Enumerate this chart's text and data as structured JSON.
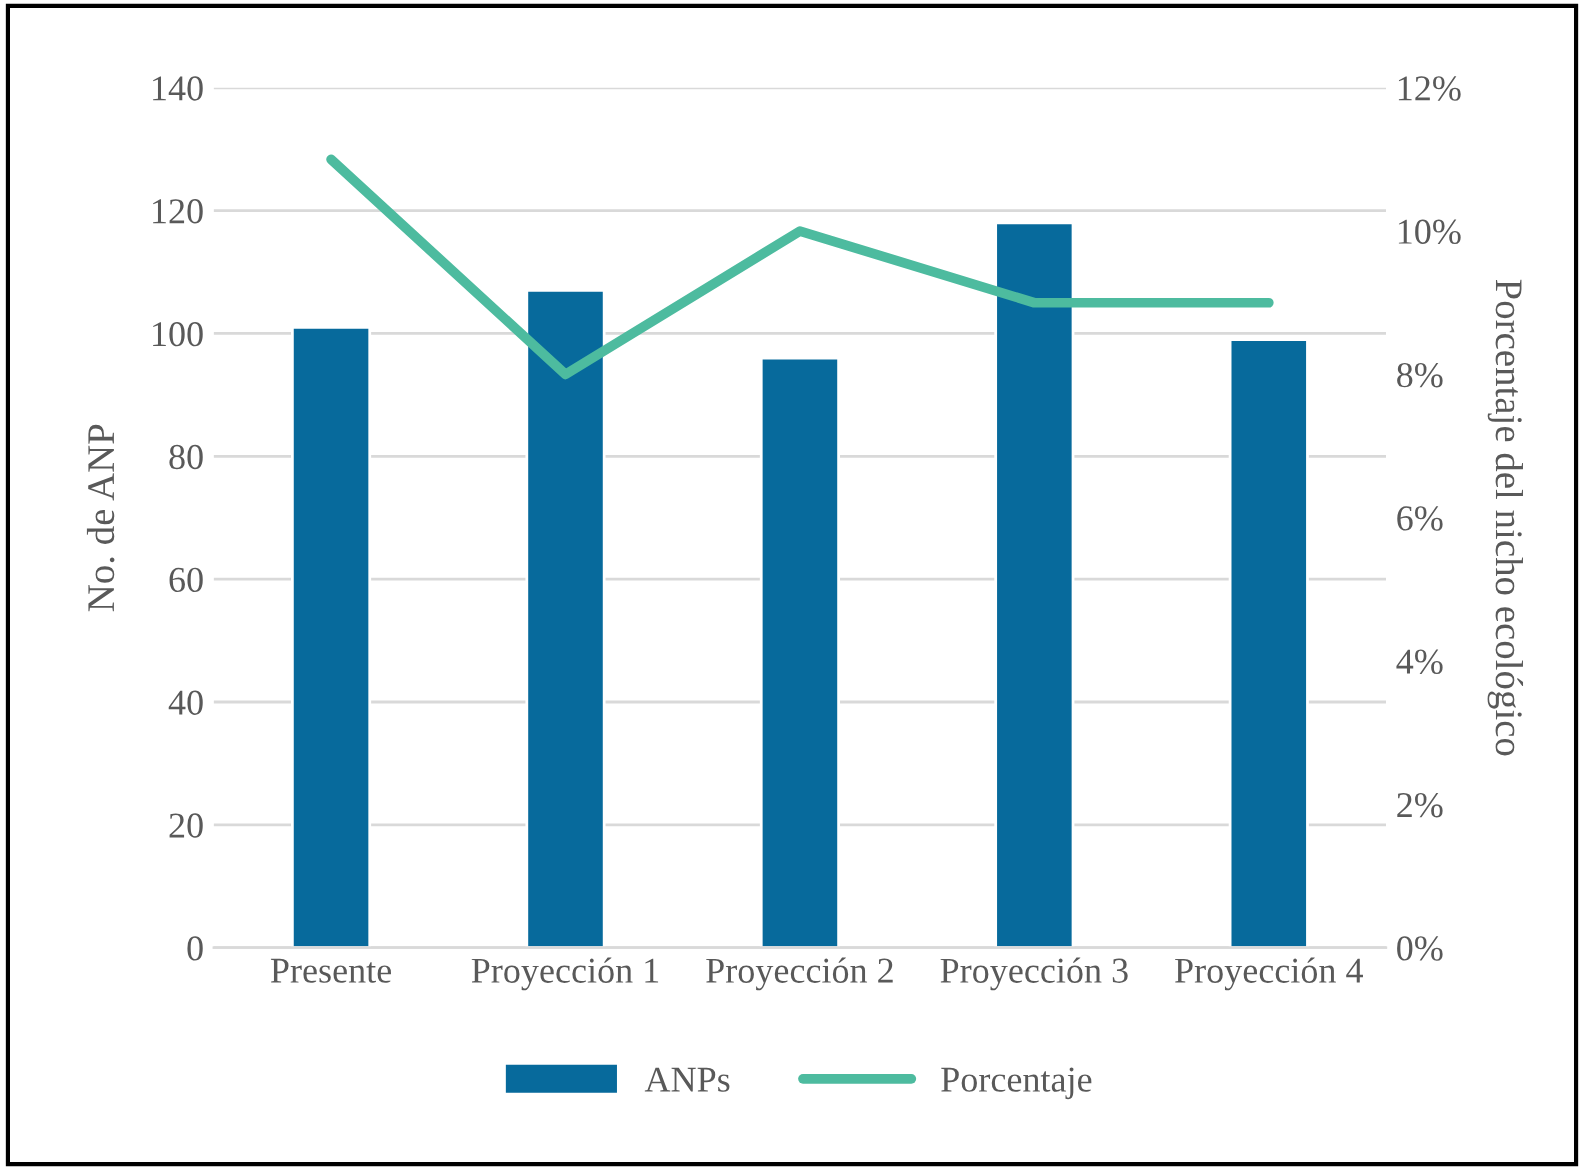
{
  "chart_data": {
    "type": "bar",
    "categories": [
      "Presente",
      "Proyección 1",
      "Proyección 2",
      "Proyección 3",
      "Proyección 4"
    ],
    "series": [
      {
        "name": "ANPs",
        "color": "#076a9c",
        "values": [
          101,
          107,
          96,
          118,
          99
        ]
      },
      {
        "name": "Porcentaje",
        "type": "line",
        "axis": "y2",
        "color": "#4dbb9f",
        "values": [
          11,
          8,
          10,
          9,
          9
        ]
      }
    ],
    "ylabel": "No. de ANP",
    "y2label": "Porcentaje del nicho ecológico",
    "ylim": [
      0,
      140
    ],
    "yticks": [
      0,
      20,
      40,
      60,
      80,
      100,
      120,
      140
    ],
    "y2lim": [
      0,
      12
    ],
    "y2ticks": [
      {
        "value": 0,
        "label": "0%"
      },
      {
        "value": 2,
        "label": "2%"
      },
      {
        "value": 4,
        "label": "4%"
      },
      {
        "value": 6,
        "label": "6%"
      },
      {
        "value": 8,
        "label": "8%"
      },
      {
        "value": 10,
        "label": "10%"
      },
      {
        "value": 12,
        "label": "12%"
      }
    ],
    "grid": "y",
    "legend": "bottom"
  }
}
